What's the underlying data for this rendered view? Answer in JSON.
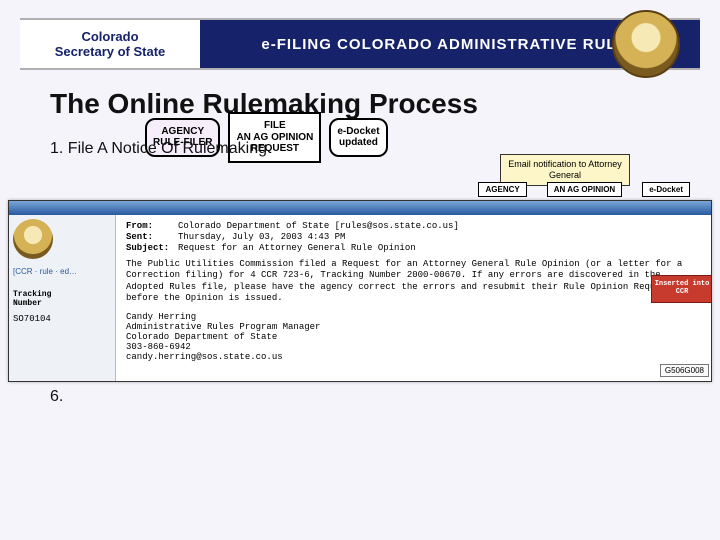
{
  "banner": {
    "org_line1": "Colorado",
    "org_line2": "Secretary of State",
    "title": "e-FILING COLORADO ADMINISTRATIVE RULES"
  },
  "heading": "The Online Rulemaking Process",
  "steps": {
    "s1": "1.  File A Notice Of Rulemaking",
    "s6": "6. "
  },
  "flow": {
    "agency_rule_filer": "AGENCY\nRULE-FILER",
    "file_ag": "FILE\nAN AG OPINION\nREQUEST",
    "edocket": "e-Docket\nupdated",
    "note": "Email notification to Attorney General",
    "tiny1": "AGENCY",
    "tiny2": "AN AG OPINION",
    "tiny3": "e-Docket"
  },
  "overlay": {
    "side_link": "[CCR · rule · ed…",
    "tracking_header": "Tracking\nNumber",
    "tracking_num": "SO70104",
    "headers": {
      "from_k": "From:",
      "from_v": "Colorado Department of State [rules@sos.state.co.us]",
      "sent_k": "Sent:",
      "sent_v": "Thursday, July 03, 2003 4:43 PM",
      "subj_k": "Subject:",
      "subj_v": "Request for an Attorney General Rule Opinion"
    },
    "body1": "The Public Utilities Commission filed a Request for an Attorney General  Rule Opinion (or a letter for a Correction filing) for 4 CCR 723-6, Tracking Number 2000-00670. If any errors are discovered in the Adopted Rules file, please have the agency correct the errors and resubmit their Rule Opinion Request before the Opinion is issued.",
    "sig_name": "Candy Herring",
    "sig_title": "Administrative Rules Program Manager",
    "sig_org": "Colorado Department of State",
    "sig_phone": "303-860-6942",
    "sig_email": "candy.herring@sos.state.co.us",
    "badge_insert": "Inserted into\nCCR",
    "badge_num": "G506G008"
  }
}
